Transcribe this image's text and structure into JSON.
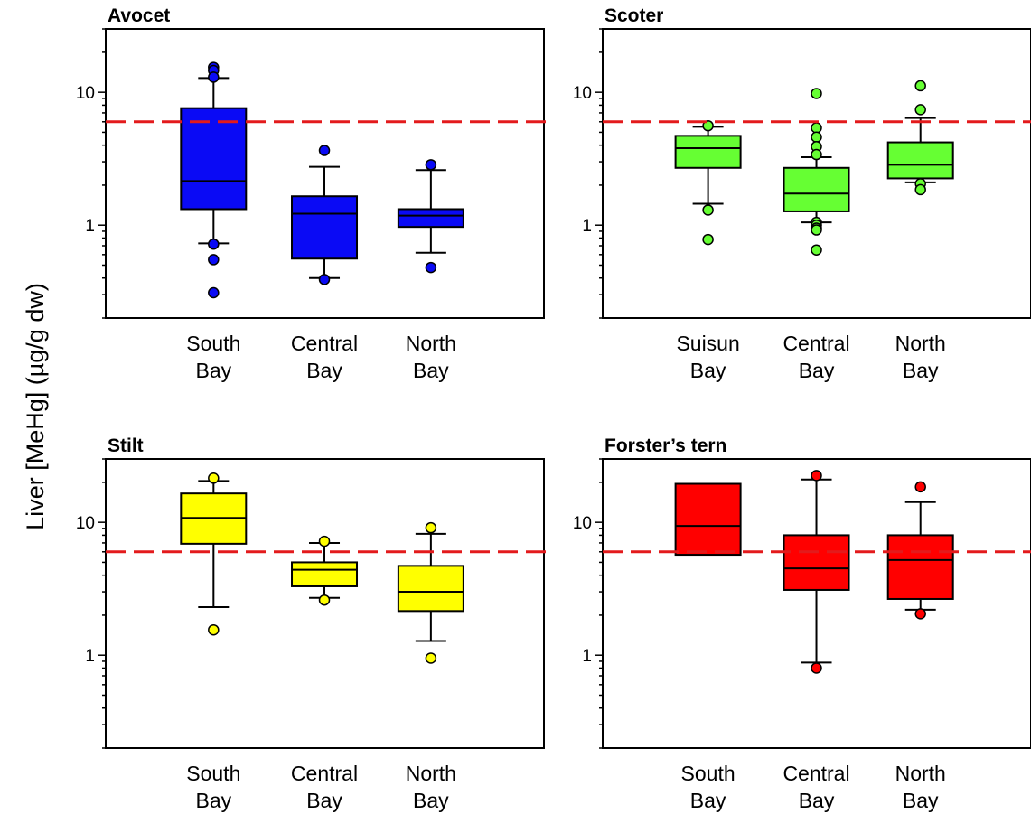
{
  "figure": {
    "ylabel": "Liver [MeHg] (µg/g dw)",
    "threshold_color": "#e31a1c"
  },
  "chart_data": [
    {
      "type": "box",
      "title": "Avocet",
      "color": "#0a0af5",
      "categories": [
        [
          "South",
          "Bay"
        ],
        [
          "Central",
          "Bay"
        ],
        [
          "North",
          "Bay"
        ]
      ],
      "yscale": "log",
      "ylim": [
        0.2,
        30
      ],
      "yticks": [
        1,
        10
      ],
      "ytick_labels": [
        "1",
        "10"
      ],
      "threshold": 6.0,
      "boxes": [
        {
          "whisker_low": 0.73,
          "q1": 1.32,
          "median": 2.15,
          "q3": 7.6,
          "whisker_high": 12.8,
          "outliers": [
            15.4,
            14.6,
            13.0,
            0.72,
            0.55,
            0.31
          ]
        },
        {
          "whisker_low": 0.4,
          "q1": 0.56,
          "median": 1.22,
          "q3": 1.65,
          "whisker_high": 2.75,
          "outliers": [
            3.65,
            0.39
          ]
        },
        {
          "whisker_low": 0.62,
          "q1": 0.97,
          "median": 1.18,
          "q3": 1.32,
          "whisker_high": 2.6,
          "outliers": [
            2.85,
            0.48
          ]
        }
      ]
    },
    {
      "type": "box",
      "title": "Scoter",
      "color": "#66ff33",
      "categories": [
        [
          "Suisun",
          "Bay"
        ],
        [
          "Central",
          "Bay"
        ],
        [
          "North",
          "Bay"
        ]
      ],
      "yscale": "log",
      "ylim": [
        0.2,
        30
      ],
      "yticks": [
        1,
        10
      ],
      "ytick_labels": [
        "1",
        "10"
      ],
      "threshold": 6.0,
      "boxes": [
        {
          "whisker_low": 1.45,
          "q1": 2.7,
          "median": 3.8,
          "q3": 4.7,
          "whisker_high": 5.5,
          "outliers": [
            5.6,
            1.3,
            0.78
          ]
        },
        {
          "whisker_low": 1.05,
          "q1": 1.27,
          "median": 1.73,
          "q3": 2.7,
          "whisker_high": 3.25,
          "outliers": [
            9.8,
            5.4,
            4.6,
            3.9,
            3.4,
            1.05,
            1.0,
            0.95,
            0.92,
            0.65
          ]
        },
        {
          "whisker_low": 2.1,
          "q1": 2.25,
          "median": 2.85,
          "q3": 4.2,
          "whisker_high": 6.4,
          "outliers": [
            11.2,
            7.4,
            2.05,
            1.85
          ]
        }
      ]
    },
    {
      "type": "box",
      "title": "Stilt",
      "color": "#ffff00",
      "categories": [
        [
          "South",
          "Bay"
        ],
        [
          "Central",
          "Bay"
        ],
        [
          "North",
          "Bay"
        ]
      ],
      "yscale": "log",
      "ylim": [
        0.2,
        30
      ],
      "yticks": [
        1,
        10
      ],
      "ytick_labels": [
        "1",
        "10"
      ],
      "threshold": 6.0,
      "boxes": [
        {
          "whisker_low": 2.3,
          "q1": 6.9,
          "median": 10.8,
          "q3": 16.5,
          "whisker_high": 20.5,
          "outliers": [
            21.5,
            1.55
          ]
        },
        {
          "whisker_low": 2.7,
          "q1": 3.3,
          "median": 4.4,
          "q3": 5.0,
          "whisker_high": 7.0,
          "outliers": [
            7.2,
            2.6
          ]
        },
        {
          "whisker_low": 1.28,
          "q1": 2.15,
          "median": 3.0,
          "q3": 4.7,
          "whisker_high": 8.2,
          "outliers": [
            9.1,
            0.95
          ]
        }
      ]
    },
    {
      "type": "box",
      "title": "Forster’s tern",
      "color": "#ff0000",
      "categories": [
        [
          "South",
          "Bay"
        ],
        [
          "Central",
          "Bay"
        ],
        [
          "North",
          "Bay"
        ]
      ],
      "yscale": "log",
      "ylim": [
        0.2,
        30
      ],
      "yticks": [
        1,
        10
      ],
      "ytick_labels": [
        "1",
        "10"
      ],
      "threshold": 6.0,
      "boxes": [
        {
          "whisker_low": null,
          "q1": 5.7,
          "median": 9.4,
          "q3": 19.5,
          "whisker_high": null,
          "outliers": []
        },
        {
          "whisker_low": 0.88,
          "q1": 3.1,
          "median": 4.5,
          "q3": 8.0,
          "whisker_high": 21.0,
          "outliers": [
            22.5,
            0.8
          ]
        },
        {
          "whisker_low": 2.2,
          "q1": 2.65,
          "median": 5.2,
          "q3": 8.0,
          "whisker_high": 14.2,
          "outliers": [
            18.5,
            2.05
          ]
        }
      ]
    }
  ]
}
